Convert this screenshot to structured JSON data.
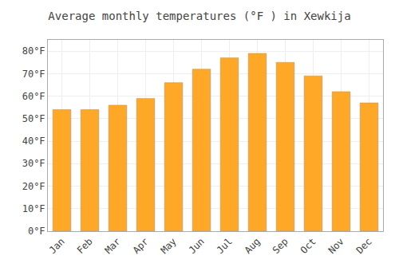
{
  "chart_data": {
    "type": "bar",
    "title": "Average monthly temperatures (°F ) in Xewkija",
    "categories": [
      "Jan",
      "Feb",
      "Mar",
      "Apr",
      "May",
      "Jun",
      "Jul",
      "Aug",
      "Sep",
      "Oct",
      "Nov",
      "Dec"
    ],
    "values": [
      54,
      54,
      56,
      59,
      66,
      72,
      77,
      79,
      75,
      69,
      62,
      57
    ],
    "color": "#FFA726",
    "ylim": [
      0,
      85
    ],
    "yticks": [
      {
        "value": 0,
        "label": "0°F"
      },
      {
        "value": 10,
        "label": "10°F"
      },
      {
        "value": 20,
        "label": "20°F"
      },
      {
        "value": 30,
        "label": "30°F"
      },
      {
        "value": 40,
        "label": "40°F"
      },
      {
        "value": 50,
        "label": "50°F"
      },
      {
        "value": 60,
        "label": "60°F"
      },
      {
        "value": 70,
        "label": "70°F"
      },
      {
        "value": 80,
        "label": "80°F"
      }
    ],
    "grid": true
  }
}
